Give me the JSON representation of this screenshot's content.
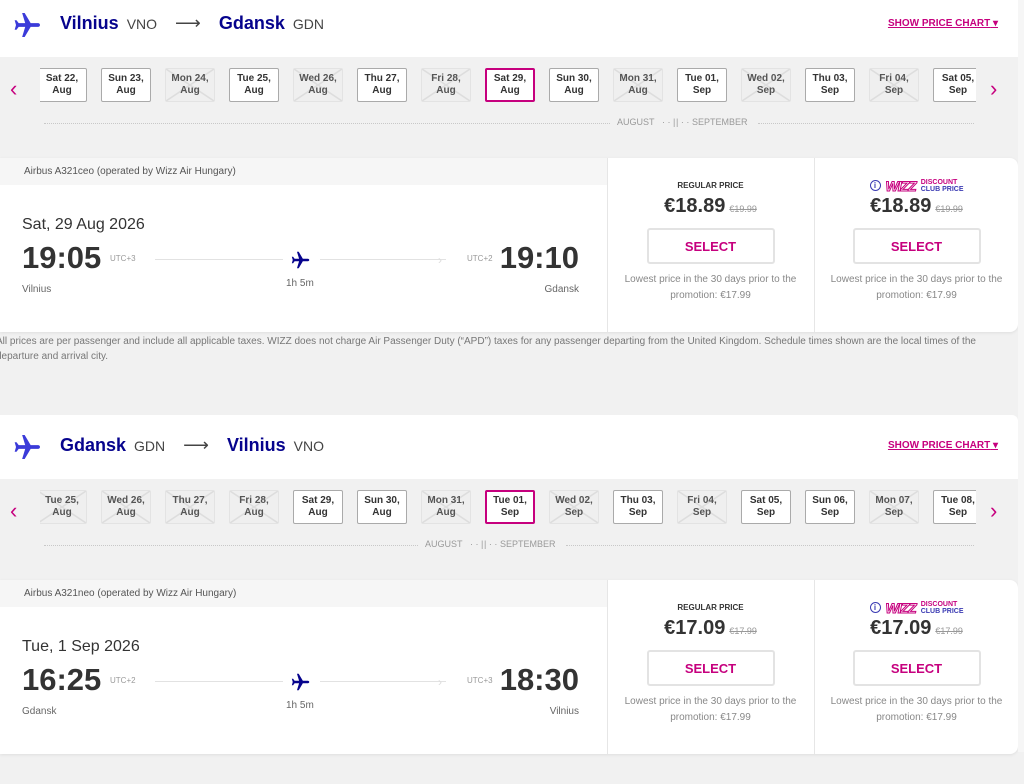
{
  "colors": {
    "brand": "#06038d",
    "accent": "#c6007e"
  },
  "flights": [
    {
      "from_city": "Vilnius",
      "from_code": "VNO",
      "to_city": "Gdansk",
      "to_code": "GDN",
      "show_price_chart": "SHOW PRICE CHART",
      "dates": [
        {
          "label1": "Sat 22,",
          "label2": "Aug",
          "state": "available"
        },
        {
          "label1": "Sun 23,",
          "label2": "Aug",
          "state": "available"
        },
        {
          "label1": "Mon 24,",
          "label2": "Aug",
          "state": "disabled"
        },
        {
          "label1": "Tue 25,",
          "label2": "Aug",
          "state": "available"
        },
        {
          "label1": "Wed 26,",
          "label2": "Aug",
          "state": "disabled"
        },
        {
          "label1": "Thu 27,",
          "label2": "Aug",
          "state": "available"
        },
        {
          "label1": "Fri 28,",
          "label2": "Aug",
          "state": "disabled"
        },
        {
          "label1": "Sat 29,",
          "label2": "Aug",
          "state": "selected"
        },
        {
          "label1": "Sun 30,",
          "label2": "Aug",
          "state": "available"
        },
        {
          "label1": "Mon 31,",
          "label2": "Aug",
          "state": "disabled"
        },
        {
          "label1": "Tue 01,",
          "label2": "Sep",
          "state": "available"
        },
        {
          "label1": "Wed 02,",
          "label2": "Sep",
          "state": "disabled"
        },
        {
          "label1": "Thu 03,",
          "label2": "Sep",
          "state": "available"
        },
        {
          "label1": "Fri 04,",
          "label2": "Sep",
          "state": "disabled"
        },
        {
          "label1": "Sat 05,",
          "label2": "Sep",
          "state": "available"
        }
      ],
      "month_left": "AUGUST",
      "month_right": "SEPTEMBER",
      "aircraft": "Airbus A321ceo (operated by Wizz Air Hungary)",
      "date": "Sat, 29 Aug 2026",
      "dep_time": "19:05",
      "dep_utc": "UTC+3",
      "dep_city": "Vilnius",
      "arr_time": "19:10",
      "arr_utc": "UTC+2",
      "arr_city": "Gdansk",
      "duration": "1h 5m",
      "regular_label": "REGULAR PRICE",
      "regular_price": "€18.89",
      "regular_old": "€19.99",
      "club_logo": "WIZZ",
      "club_label1": "DISCOUNT",
      "club_label2": "CLUB PRICE",
      "club_price": "€18.89",
      "club_old": "€19.99",
      "select": "SELECT",
      "lowest": "Lowest price in the 30 days prior to the promotion: €17.99",
      "note": "All prices are per passenger and include all applicable taxes. WIZZ does not charge Air Passenger Duty (“APD”) taxes for any passenger departing from the United Kingdom. Schedule times shown are the local times of the departure and arrival city."
    },
    {
      "from_city": "Gdansk",
      "from_code": "GDN",
      "to_city": "Vilnius",
      "to_code": "VNO",
      "show_price_chart": "SHOW PRICE CHART",
      "dates": [
        {
          "label1": "Tue 25,",
          "label2": "Aug",
          "state": "disabled"
        },
        {
          "label1": "Wed 26,",
          "label2": "Aug",
          "state": "disabled"
        },
        {
          "label1": "Thu 27,",
          "label2": "Aug",
          "state": "disabled"
        },
        {
          "label1": "Fri 28,",
          "label2": "Aug",
          "state": "disabled"
        },
        {
          "label1": "Sat 29,",
          "label2": "Aug",
          "state": "available"
        },
        {
          "label1": "Sun 30,",
          "label2": "Aug",
          "state": "available"
        },
        {
          "label1": "Mon 31,",
          "label2": "Aug",
          "state": "disabled"
        },
        {
          "label1": "Tue 01,",
          "label2": "Sep",
          "state": "selected"
        },
        {
          "label1": "Wed 02,",
          "label2": "Sep",
          "state": "disabled"
        },
        {
          "label1": "Thu 03,",
          "label2": "Sep",
          "state": "available"
        },
        {
          "label1": "Fri 04,",
          "label2": "Sep",
          "state": "disabled"
        },
        {
          "label1": "Sat 05,",
          "label2": "Sep",
          "state": "available"
        },
        {
          "label1": "Sun 06,",
          "label2": "Sep",
          "state": "available"
        },
        {
          "label1": "Mon 07,",
          "label2": "Sep",
          "state": "disabled"
        },
        {
          "label1": "Tue 08,",
          "label2": "Sep",
          "state": "available"
        }
      ],
      "month_left": "AUGUST",
      "month_right": "SEPTEMBER",
      "aircraft": "Airbus A321neo (operated by Wizz Air Hungary)",
      "date": "Tue, 1 Sep 2026",
      "dep_time": "16:25",
      "dep_utc": "UTC+2",
      "dep_city": "Gdansk",
      "arr_time": "18:30",
      "arr_utc": "UTC+3",
      "arr_city": "Vilnius",
      "duration": "1h 5m",
      "regular_label": "REGULAR PRICE",
      "regular_price": "€17.09",
      "regular_old": "€17.99",
      "club_logo": "WIZZ",
      "club_label1": "DISCOUNT",
      "club_label2": "CLUB PRICE",
      "club_price": "€17.09",
      "club_old": "€17.99",
      "select": "SELECT",
      "lowest": "Lowest price in the 30 days prior to the promotion: €17.99"
    }
  ]
}
